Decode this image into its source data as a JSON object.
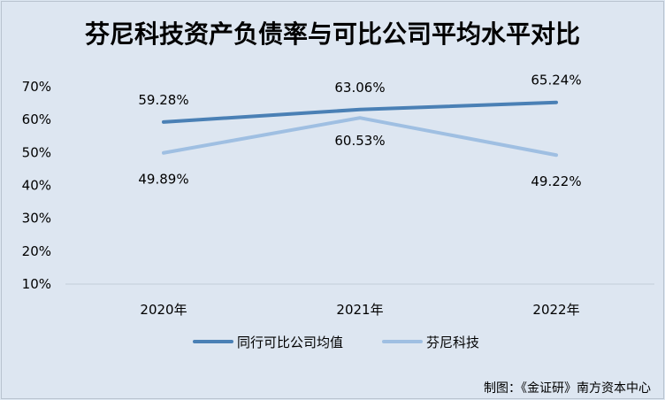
{
  "chart_data": {
    "type": "line",
    "title": "芬尼科技资产负债率与可比公司平均水平对比",
    "categories": [
      "2020年",
      "2021年",
      "2022年"
    ],
    "y_ticks": [
      "10%",
      "20%",
      "30%",
      "40%",
      "50%",
      "60%",
      "70%"
    ],
    "ylim": [
      10,
      70
    ],
    "unit": "%",
    "grid": false,
    "legend_position": "bottom",
    "series": [
      {
        "name": "同行可比公司均值",
        "values": [
          59.28,
          63.06,
          65.24
        ],
        "labels": [
          "59.28%",
          "63.06%",
          "65.24%"
        ],
        "color": "#4a80b5"
      },
      {
        "name": "芬尼科技",
        "values": [
          49.89,
          60.53,
          49.22
        ],
        "labels": [
          "49.89%",
          "60.53%",
          "49.22%"
        ],
        "color": "#9fbfe2"
      }
    ],
    "axis_color": "#c9d3de",
    "credit": "制图：《金证研》南方资本中心"
  }
}
